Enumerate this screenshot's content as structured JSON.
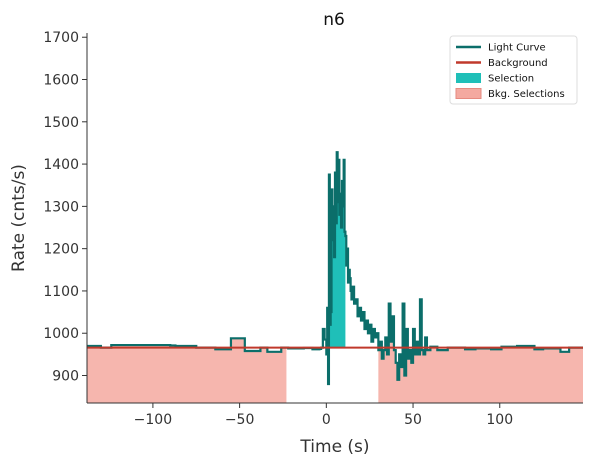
{
  "chart_data": {
    "type": "line",
    "title": "n6",
    "xlabel": "Time (s)",
    "ylabel": "Rate (cnts/s)",
    "xlim": [
      -138,
      148
    ],
    "ylim": [
      835,
      1710
    ],
    "xticks": [
      -100,
      -50,
      0,
      50,
      100
    ],
    "xtick_labels": [
      "−100",
      "−50",
      "0",
      "50",
      "100"
    ],
    "yticks": [
      900,
      1000,
      1100,
      1200,
      1300,
      1400,
      1500,
      1600,
      1700
    ],
    "ytick_labels": [
      "900",
      "1000",
      "1100",
      "1200",
      "1300",
      "1400",
      "1500",
      "1600",
      "1700"
    ],
    "legend_position": "top-right",
    "colors": {
      "light_curve": "#0b6e6a",
      "background": "#c0392b",
      "selection": "#1fbfb8",
      "bkg_selection": "#f4a9a0"
    },
    "series": [
      {
        "name": "Light Curve",
        "style": "step",
        "points": [
          [
            -138,
            970
          ],
          [
            -130,
            966
          ],
          [
            -124,
            972
          ],
          [
            -115,
            972
          ],
          [
            -90,
            971
          ],
          [
            -87,
            970
          ],
          [
            -75,
            966
          ],
          [
            -72,
            966
          ],
          [
            -64,
            962
          ],
          [
            -55,
            988
          ],
          [
            -47,
            958
          ],
          [
            -38,
            966
          ],
          [
            -34,
            956
          ],
          [
            -26,
            966
          ],
          [
            -22,
            964
          ],
          [
            -13,
            965
          ],
          [
            -8,
            962
          ],
          [
            -4,
            963
          ],
          [
            -3,
            966
          ],
          [
            -2,
            1010
          ],
          [
            -1,
            985
          ],
          [
            0,
            950
          ],
          [
            0.5,
            1060
          ],
          [
            1,
            880
          ],
          [
            1.5,
            1375
          ],
          [
            2,
            1020
          ],
          [
            2.5,
            1050
          ],
          [
            3,
            1340
          ],
          [
            3.5,
            1220
          ],
          [
            4,
            1300
          ],
          [
            4.5,
            1180
          ],
          [
            5,
            1380
          ],
          [
            5.5,
            1260
          ],
          [
            6,
            1428
          ],
          [
            6.5,
            1310
          ],
          [
            7,
            1410
          ],
          [
            7.5,
            1280
          ],
          [
            8,
            1330
          ],
          [
            8.5,
            1250
          ],
          [
            9,
            1360
          ],
          [
            9.5,
            1300
          ],
          [
            10,
            1410
          ],
          [
            10.5,
            1240
          ],
          [
            11,
            1230
          ],
          [
            11.5,
            1160
          ],
          [
            12,
            1200
          ],
          [
            12.5,
            1120
          ],
          [
            13,
            1150
          ],
          [
            13.5,
            1130
          ],
          [
            14,
            1100
          ],
          [
            14.5,
            1080
          ],
          [
            15,
            1110
          ],
          [
            16,
            1070
          ],
          [
            17,
            1080
          ],
          [
            18,
            1040
          ],
          [
            19,
            1060
          ],
          [
            20,
            1030
          ],
          [
            21,
            1050
          ],
          [
            22,
            1010
          ],
          [
            23,
            1030
          ],
          [
            24,
            1000
          ],
          [
            25,
            1020
          ],
          [
            26,
            980
          ],
          [
            27,
            1010
          ],
          [
            28,
            990
          ],
          [
            29,
            1000
          ],
          [
            30,
            960
          ],
          [
            31,
            980
          ],
          [
            32,
            940
          ],
          [
            33,
            960
          ],
          [
            34,
            990
          ],
          [
            35,
            950
          ],
          [
            36,
            1070
          ],
          [
            37,
            980
          ],
          [
            38,
            1040
          ],
          [
            39,
            960
          ],
          [
            40,
            930
          ],
          [
            41,
            890
          ],
          [
            42,
            950
          ],
          [
            43,
            920
          ],
          [
            44,
            1070
          ],
          [
            45,
            900
          ],
          [
            46,
            1010
          ],
          [
            47,
            940
          ],
          [
            48,
            960
          ],
          [
            49,
            930
          ],
          [
            50,
            1010
          ],
          [
            51,
            950
          ],
          [
            52,
            980
          ],
          [
            53,
            950
          ],
          [
            54,
            1080
          ],
          [
            55,
            960
          ],
          [
            56,
            950
          ],
          [
            57,
            990
          ],
          [
            58,
            960
          ],
          [
            60,
            968
          ],
          [
            64,
            960
          ],
          [
            70,
            966
          ],
          [
            80,
            962
          ],
          [
            86,
            964
          ],
          [
            95,
            962
          ],
          [
            101,
            968
          ],
          [
            110,
            970
          ],
          [
            120,
            962
          ],
          [
            125,
            964
          ],
          [
            135,
            956
          ],
          [
            140,
            966
          ],
          [
            148,
            966
          ]
        ]
      },
      {
        "name": "Background",
        "style": "line",
        "points": [
          [
            -138,
            966
          ],
          [
            148,
            966
          ]
        ]
      }
    ],
    "selections": [
      {
        "name": "Selection",
        "x_start": 1,
        "x_end": 11
      }
    ],
    "bkg_selections": [
      {
        "name": "Bkg. Selections",
        "x_start": -138,
        "x_end": -23
      },
      {
        "name": "Bkg. Selections",
        "x_start": 30,
        "x_end": 148
      }
    ],
    "legend": [
      "Light Curve",
      "Background",
      "Selection",
      "Bkg. Selections"
    ]
  }
}
